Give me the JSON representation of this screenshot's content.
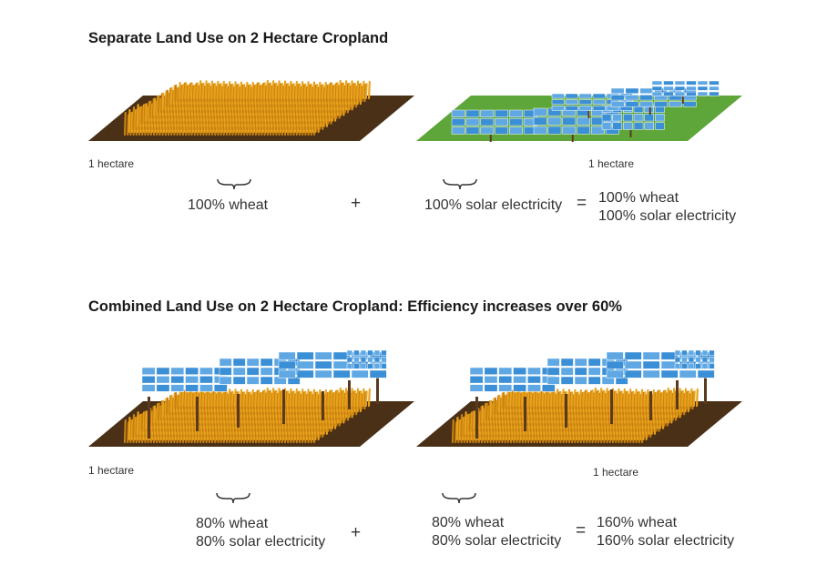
{
  "separate": {
    "heading": "Separate Land Use on 2 Hectare Cropland",
    "left_plot_label": "1 hectare",
    "right_plot_label": "1 hectare",
    "left_result": "100% wheat",
    "plus": "+",
    "right_result": "100% solar electricity",
    "equals": "=",
    "total_line1": "100% wheat",
    "total_line2": "100% solar electricity"
  },
  "combined": {
    "heading": "Combined Land Use on 2 Hectare Cropland: Efficiency increases over 60%",
    "left_plot_label": "1 hectare",
    "right_plot_label": "1 hectare",
    "left_line1": "80% wheat",
    "left_line2": "80% solar electricity",
    "plus": "+",
    "right_line1": "80% wheat",
    "right_line2": "80% solar electricity",
    "equals": "=",
    "total_line1": "160% wheat",
    "total_line2": "160% solar electricity"
  },
  "colors": {
    "soil": "#4a3016",
    "wheat": "#e8a21c",
    "wheat_dark": "#c98210",
    "grass": "#5ea63a",
    "panel": "#3a8fd6",
    "panel_light": "#8cc4ee",
    "post": "#5a3a1e"
  }
}
